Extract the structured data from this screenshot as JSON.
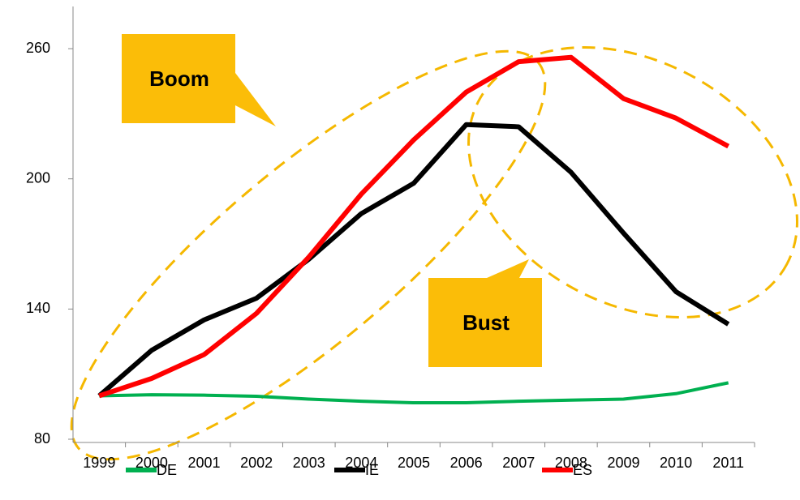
{
  "chart_data": {
    "type": "line",
    "categories": [
      "1999",
      "2000",
      "2001",
      "2002",
      "2003",
      "2004",
      "2005",
      "2006",
      "2007",
      "2008",
      "2009",
      "2010",
      "2011"
    ],
    "series": [
      {
        "name": "DE",
        "color": "#00b050",
        "values": [
          100,
          100.5,
          100.3,
          99.8,
          98.5,
          97.5,
          96.8,
          96.8,
          97.5,
          98,
          98.5,
          101,
          106
        ]
      },
      {
        "name": "IE",
        "color": "#000000",
        "values": [
          100,
          121,
          135,
          145,
          163,
          184,
          198,
          225,
          224,
          203,
          175,
          148,
          133
        ]
      },
      {
        "name": "ES",
        "color": "#ff0000",
        "values": [
          100,
          108,
          119,
          138,
          164,
          193,
          218,
          240,
          254,
          256,
          237,
          228,
          215
        ]
      }
    ],
    "ylim": [
      80,
      280
    ],
    "yticks": [
      80,
      140,
      200,
      260
    ],
    "grid": false,
    "legend": "bottom",
    "annotations": [
      "Boom",
      "Bust"
    ]
  }
}
